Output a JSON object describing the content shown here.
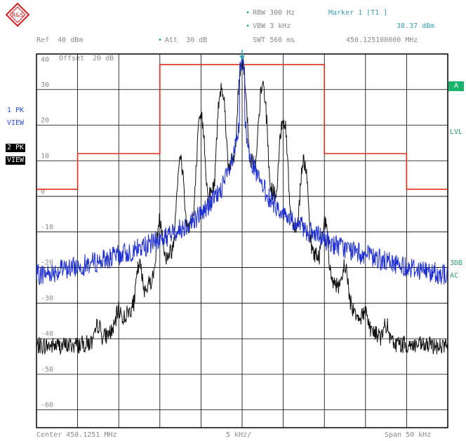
{
  "header": {
    "rbw": "RBW 300 Hz",
    "vbw": "VBW 3 kHz",
    "swt": "SWT 560 ms",
    "marker_label": "Marker 1 [T1 ]",
    "marker_level": "38.37 dBm",
    "marker_freq": "450.125100000 MHz",
    "ref": "Ref  40 dBm",
    "att": "Att  30 dB",
    "offset": "Offset  20 dB",
    "bullet": "•"
  },
  "left_panel": {
    "trace1_a": "1 PK",
    "trace1_b": "VIEW",
    "trace2_a": "2 PK",
    "trace2_b": "VIEW"
  },
  "right_panel": {
    "a_label": "A",
    "lvl_label": "LVL",
    "db3_label": "3DB",
    "ac_label": "AC"
  },
  "footer": {
    "center": "Center 450.1251 MHz",
    "div": "5 kHz/",
    "span": "Span 50 kHz"
  },
  "colors": {
    "trace_black": "#111111",
    "trace_blue": "#1f2fd0",
    "mask_red": "#e0301c",
    "grid": "#000000",
    "marker": "#2aa6b2"
  },
  "chart_data": {
    "type": "line",
    "xlabel": "",
    "ylabel": "",
    "x_range_khz": [
      -25,
      25
    ],
    "ylim": [
      -65,
      40
    ],
    "y_ticks": [
      40,
      30,
      20,
      10,
      0,
      -10,
      -20,
      -30,
      -40,
      -50,
      -60
    ],
    "y_tick_labels": [
      "40",
      "30",
      "20",
      "10",
      "0",
      "-10",
      "-20",
      "-30",
      "-40",
      "-50",
      "-60"
    ],
    "grid": true,
    "noise_floor_dbm": -42,
    "mask": {
      "x_khz": [
        -25,
        -20,
        -20,
        -10,
        -10,
        10,
        10,
        20,
        20,
        25
      ],
      "y_dbm": [
        2,
        2,
        12,
        12,
        37,
        37,
        12,
        12,
        2,
        2
      ]
    },
    "series": [
      {
        "peaks_x_khz": [
          0,
          -2.5,
          2.5,
          -5,
          5,
          -7.5,
          7.5,
          -10,
          10,
          -12.5,
          12.5,
          -15,
          15,
          -17.5,
          17.5
        ],
        "peaks_y_dbm": [
          38,
          31,
          31,
          22,
          22,
          10,
          10,
          -7,
          -7,
          -20,
          -20,
          -34,
          -34,
          -38,
          -38
        ]
      },
      {
        "center_x_khz": 0,
        "center_y_dbm": 38.37
      }
    ],
    "marker": {
      "x_khz": 0.0,
      "y_dbm": 38.37
    }
  }
}
